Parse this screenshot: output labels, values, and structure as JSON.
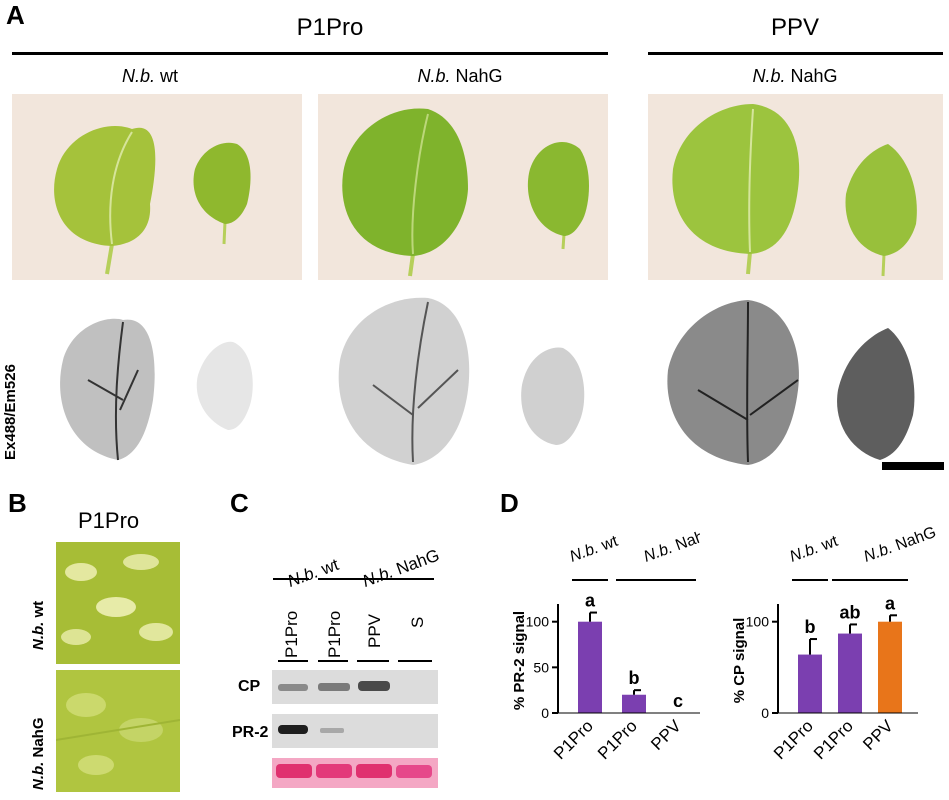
{
  "panel_a": {
    "letter": "A",
    "group_left_title": "P1Pro",
    "group_right_title": "PPV",
    "col1_label_italic": "N.b.",
    "col1_label_rest": " wt",
    "col2_label_italic": "N.b.",
    "col2_label_rest": " NahG",
    "col3_label_italic": "N.b.",
    "col3_label_rest": " NahG",
    "row_label": "Ex488/Em526"
  },
  "panel_b": {
    "letter": "B",
    "title": "P1Pro",
    "row1_italic": "N.b.",
    "row1_rest": " wt",
    "row2_italic": "N.b.",
    "row2_rest": " NahG"
  },
  "panel_c": {
    "letter": "C",
    "group_wt_italic": "N.b.",
    "group_wt_rest": " wt",
    "group_nahg_italic": "N.b.",
    "group_nahg_rest": " NahG",
    "lanes": [
      "P1Pro",
      "P1Pro",
      "PPV",
      "S"
    ],
    "row_labels": [
      "CP",
      "PR-2"
    ]
  },
  "panel_d": {
    "letter": "D"
  },
  "chart_data": [
    {
      "type": "bar",
      "ylabel": "% PR-2 signal",
      "categories": [
        "P1Pro",
        "P1Pro",
        "PPV"
      ],
      "group_labels": {
        "wt_italic": "N.b.",
        "wt_rest": " wt",
        "nahg_italic": "N.b.",
        "nahg_rest": " NahG"
      },
      "values": [
        100,
        20,
        0
      ],
      "errors": [
        10,
        5,
        0
      ],
      "significance": [
        "a",
        "b",
        "c"
      ],
      "yticks": [
        0,
        50,
        100
      ],
      "ylim": [
        0,
        115
      ],
      "colors": [
        "#7B3FB0",
        "#7B3FB0",
        "#7B3FB0"
      ]
    },
    {
      "type": "bar",
      "ylabel": "% CP signal",
      "categories": [
        "P1Pro",
        "P1Pro",
        "PPV"
      ],
      "group_labels": {
        "wt_italic": "N.b.",
        "wt_rest": " wt",
        "nahg_italic": "N.b.",
        "nahg_rest": " NahG"
      },
      "values": [
        64,
        87,
        100
      ],
      "errors": [
        17,
        10,
        7
      ],
      "significance": [
        "b",
        "ab",
        "a"
      ],
      "yticks": [
        0,
        100
      ],
      "ylim": [
        0,
        115
      ],
      "colors": [
        "#7B3FB0",
        "#7B3FB0",
        "#E8751A"
      ]
    }
  ]
}
